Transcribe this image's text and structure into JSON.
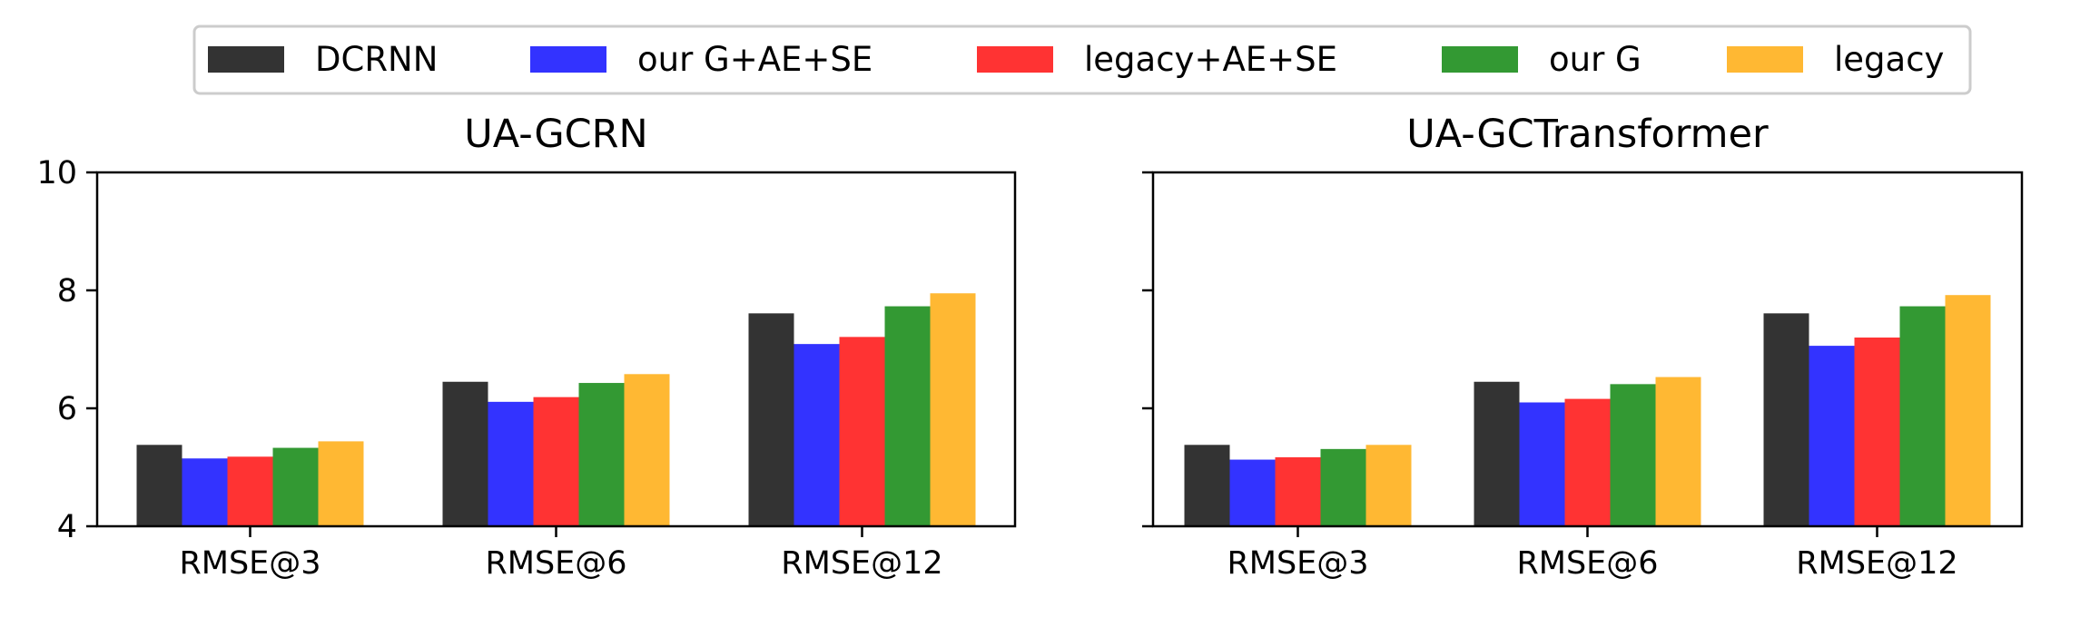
{
  "legend": {
    "entries": [
      {
        "label": "DCRNN",
        "color": "#333333"
      },
      {
        "label": "our G+AE+SE",
        "color": "#3333ff"
      },
      {
        "label": "legacy+AE+SE",
        "color": "#ff3333"
      },
      {
        "label": "our G",
        "color": "#339933"
      },
      {
        "label": "legacy",
        "color": "#ffb833"
      }
    ],
    "placement": "top-center"
  },
  "chart_data": [
    {
      "type": "bar",
      "title": "UA-GCRN",
      "categories": [
        "RMSE@3",
        "RMSE@6",
        "RMSE@12"
      ],
      "ylim": [
        4,
        10
      ],
      "yticks": [
        4,
        6,
        8,
        10
      ],
      "series": [
        {
          "name": "DCRNN",
          "values": [
            5.38,
            6.45,
            7.61
          ]
        },
        {
          "name": "our G+AE+SE",
          "values": [
            5.15,
            6.11,
            7.09
          ]
        },
        {
          "name": "legacy+AE+SE",
          "values": [
            5.18,
            6.19,
            7.21
          ]
        },
        {
          "name": "our G",
          "values": [
            5.33,
            6.43,
            7.73
          ]
        },
        {
          "name": "legacy",
          "values": [
            5.44,
            6.58,
            7.95
          ]
        }
      ]
    },
    {
      "type": "bar",
      "title": "UA-GCTransformer",
      "categories": [
        "RMSE@3",
        "RMSE@6",
        "RMSE@12"
      ],
      "ylim": [
        4,
        10
      ],
      "yticks": [
        4,
        6,
        8,
        10
      ],
      "series": [
        {
          "name": "DCRNN",
          "values": [
            5.38,
            6.45,
            7.61
          ]
        },
        {
          "name": "our G+AE+SE",
          "values": [
            5.13,
            6.1,
            7.06
          ]
        },
        {
          "name": "legacy+AE+SE",
          "values": [
            5.17,
            6.16,
            7.2
          ]
        },
        {
          "name": "our G",
          "values": [
            5.31,
            6.41,
            7.73
          ]
        },
        {
          "name": "legacy",
          "values": [
            5.38,
            6.53,
            7.92
          ]
        }
      ]
    }
  ]
}
